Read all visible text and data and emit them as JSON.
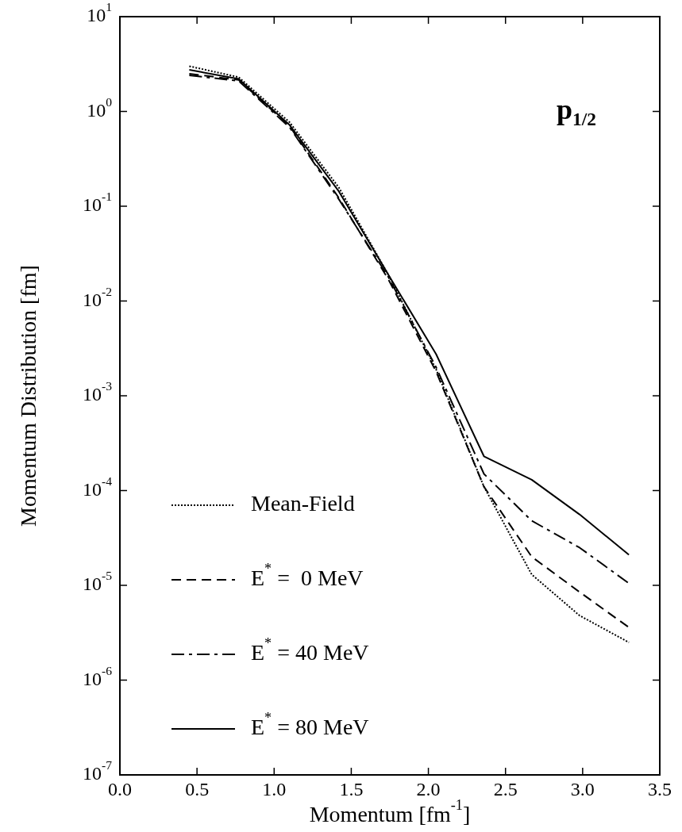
{
  "chart_data": {
    "type": "line",
    "xlabel": "Momentum [fm$^{-1}$]",
    "ylabel": "Momentum Distribution [fm]",
    "log": "y",
    "marker": "none",
    "legend": "bottom left",
    "grid": false,
    "annotations": [
      "p$_{1/2}$"
    ],
    "x": [
      0.45,
      0.77,
      1.1,
      1.42,
      1.74,
      2.05,
      2.36,
      2.67,
      2.98,
      3.3
    ],
    "xlim": [
      0,
      3.5
    ],
    "xticks": [
      {
        "value": 0,
        "label": "0.0"
      },
      {
        "value": 0.5,
        "label": "0.5"
      },
      {
        "value": 1,
        "label": "1.0"
      },
      {
        "value": 1.5,
        "label": "1.5"
      },
      {
        "value": 2,
        "label": "2.0"
      },
      {
        "value": 2.5,
        "label": "2.5"
      },
      {
        "value": 3,
        "label": "3.0"
      },
      {
        "value": 3.5,
        "label": "3.5"
      }
    ],
    "ylim": [
      1e-07,
      10
    ],
    "yticks": [
      {
        "value": 1e-07,
        "label": "10$^{-7}$"
      },
      {
        "value": 1e-06,
        "label": "10$^{-6}$"
      },
      {
        "value": 1e-05,
        "label": "10$^{-5}$"
      },
      {
        "value": 0.0001,
        "label": "10$^{-4}$"
      },
      {
        "value": 0.001,
        "label": "10$^{-3}$"
      },
      {
        "value": 0.01,
        "label": "10$^{-2}$"
      },
      {
        "value": 0.1,
        "label": "10$^{-1}$"
      },
      {
        "value": 1,
        "label": "10$^{0}$"
      },
      {
        "value": 10,
        "label": "10$^{1}$"
      }
    ],
    "series": [
      {
        "name": "Mean-Field",
        "color": "#000000",
        "line_style": "dotted",
        "values": [
          3.0,
          2.3,
          0.77,
          0.157,
          0.019,
          0.0019,
          0.00011,
          1.3e-05,
          4.8e-06,
          2.5e-06
        ]
      },
      {
        "name": "E$^{*}$ =  0 MeV",
        "color": "#000000",
        "line_style": "dashed",
        "values": [
          2.5,
          2.15,
          0.7,
          0.122,
          0.017,
          0.0018,
          0.00011,
          2e-05,
          8.5e-06,
          3.6e-06
        ]
      },
      {
        "name": "E$^{*}$ = 40 MeV",
        "color": "#000000",
        "line_style": "dashdot",
        "values": [
          2.4,
          2.1,
          0.68,
          0.118,
          0.018,
          0.002,
          0.00015,
          4.8e-05,
          2.5e-05,
          1.05e-05
        ]
      },
      {
        "name": "E$^{*}$ = 80 MeV",
        "color": "#000000",
        "line_style": "solid",
        "values": [
          2.75,
          2.2,
          0.72,
          0.143,
          0.019,
          0.00275,
          0.00023,
          0.00013,
          5.6e-05,
          2.1e-05
        ]
      }
    ]
  }
}
